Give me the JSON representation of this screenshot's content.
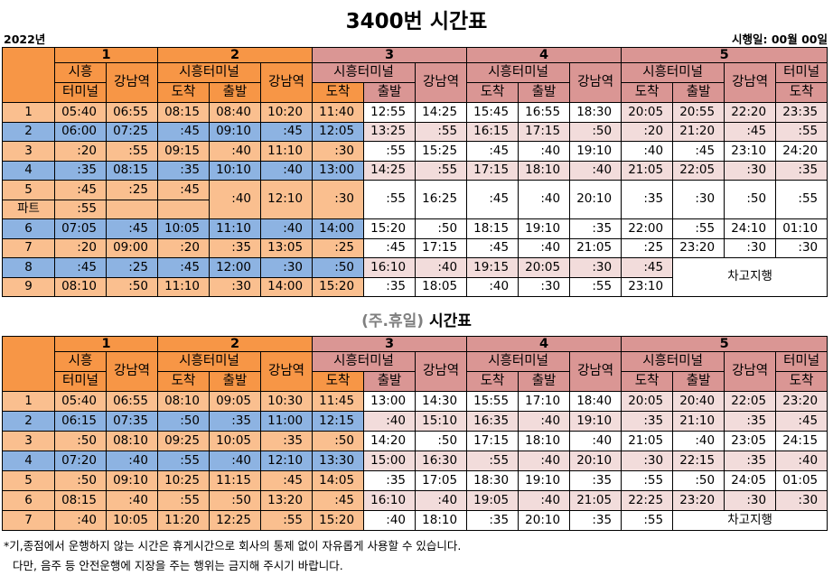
{
  "header": {
    "title": "3400번 시간표",
    "year": "2022년",
    "effective": "시행일: 00월 00일"
  },
  "weekday": {
    "head": [
      [
        "1",
        "2",
        "3",
        "4",
        "5"
      ],
      [
        "시흥",
        "강남역",
        "시흥터미널",
        "강남역",
        "시흥터미널",
        "강남역",
        "시흥터미널",
        "강남역",
        "시흥터미널",
        "강남역",
        "터미널"
      ],
      [
        "터미널",
        "도착",
        "출발",
        "도착",
        "출발",
        "도착",
        "출발",
        "도착",
        "출발",
        "도착"
      ]
    ],
    "rows": [
      [
        "1",
        "05:40",
        "06:55",
        "08:15",
        "08:40",
        "10:20",
        "11:40",
        "12:55",
        "14:25",
        "15:45",
        "16:55",
        "18:30",
        "20:05",
        "20:55",
        "22:20",
        "23:35"
      ],
      [
        "2",
        "06:00",
        "07:25",
        ":45",
        "09:10",
        ":45",
        "12:05",
        "13:25",
        ":55",
        "16:15",
        "17:15",
        ":50",
        ":20",
        "21:20",
        ":45",
        ":55"
      ],
      [
        "3",
        ":20",
        ":55",
        "09:15",
        ":40",
        "11:10",
        ":30",
        ":55",
        "15:25",
        ":45",
        ":40",
        "19:10",
        ":40",
        ":45",
        "23:10",
        "24:20"
      ],
      [
        "4",
        ":35",
        "08:15",
        ":35",
        "10:10",
        ":40",
        "13:00",
        "14:25",
        ":55",
        "17:15",
        "18:10",
        ":40",
        "21:05",
        "22:05",
        ":30",
        ":35"
      ],
      [
        "5",
        ":45",
        ":25",
        ":45",
        ":40",
        "12:10",
        ":30",
        ":55",
        "16:25",
        ":45",
        ":40",
        "20:10",
        ":35",
        ":30",
        ":50",
        ":55"
      ],
      [
        "파트",
        ":55"
      ],
      [
        "6",
        "07:05",
        ":45",
        "10:05",
        "11:10",
        ":40",
        "14:00",
        "15:20",
        ":50",
        "18:15",
        "19:10",
        ":35",
        "22:00",
        ":55",
        "24:10",
        "01:10"
      ],
      [
        "7",
        ":20",
        "09:00",
        ":20",
        ":35",
        "13:05",
        ":25",
        ":45",
        "17:15",
        ":45",
        ":40",
        "21:05",
        ":25",
        "23:20",
        ":30",
        ":30"
      ],
      [
        "8",
        ":45",
        ":25",
        ":45",
        "12:00",
        ":30",
        ":50",
        "16:10",
        ":40",
        "19:15",
        "20:05",
        ":30",
        ":45",
        "차고지행"
      ],
      [
        "9",
        "08:10",
        ":50",
        "11:10",
        ":30",
        "14:00",
        "15:20",
        ":35",
        "18:05",
        ":40",
        ":30",
        ":55",
        "23:10"
      ]
    ]
  },
  "holiday": {
    "title_prefix": "(주.휴일)",
    "title": "시간표",
    "head": [
      [
        "1",
        "2",
        "3",
        "4",
        "5"
      ],
      [
        "시흥",
        "강남역",
        "시흥터미널",
        "강남역",
        "시흥터미널",
        "강남역",
        "시흥터미널",
        "강남역",
        "시흥터미널",
        "강남역",
        "터미널"
      ],
      [
        "터미널",
        "도착",
        "출발",
        "도착",
        "출발",
        "도착",
        "출발",
        "도착",
        "출발",
        "도착"
      ]
    ],
    "rows": [
      [
        "1",
        "05:40",
        "06:55",
        "08:10",
        "09:05",
        "10:30",
        "11:45",
        "13:00",
        "14:30",
        "15:55",
        "17:10",
        "18:40",
        "20:05",
        "20:40",
        "22:05",
        "23:20"
      ],
      [
        "2",
        "06:15",
        "07:35",
        ":50",
        ":35",
        "11:00",
        "12:15",
        ":40",
        "15:10",
        "16:35",
        ":40",
        "19:10",
        ":35",
        "21:10",
        ":35",
        ":45"
      ],
      [
        "3",
        ":50",
        "08:10",
        "09:25",
        "10:05",
        ":35",
        ":50",
        "14:20",
        ":50",
        "17:15",
        "18:10",
        ":40",
        "21:05",
        ":40",
        "23:05",
        "24:15"
      ],
      [
        "4",
        "07:20",
        ":40",
        ":55",
        ":40",
        "12:10",
        "13:30",
        "15:00",
        "16:30",
        ":55",
        ":40",
        "20:10",
        ":30",
        "22:15",
        ":35",
        ":40"
      ],
      [
        "5",
        ":50",
        "09:10",
        "10:25",
        "11:15",
        ":45",
        "14:05",
        ":35",
        "17:05",
        "18:30",
        "19:10",
        ":35",
        ":55",
        ":50",
        "24:05",
        "01:05"
      ],
      [
        "6",
        "08:15",
        ":40",
        ":55",
        ":50",
        "13:20",
        ":45",
        "16:10",
        ":40",
        "19:05",
        ":40",
        "21:05",
        "22:25",
        "23:20",
        ":30",
        ":30"
      ],
      [
        "7",
        ":40",
        "10:05",
        "11:20",
        "12:25",
        ":55",
        "15:20",
        ":40",
        "18:10",
        ":35",
        "20:10",
        ":35",
        ":55",
        "차고지행"
      ]
    ]
  },
  "notes": [
    "*기,종점에서 운행하지 않는 시간은 휴게시간으로 회사의 통제 없이 자유롭게 사용할 수 있습니다.",
    "다만, 음주 등 안전운행에 지장을 주는 행위는 금지해 주시기 바랍니다."
  ]
}
